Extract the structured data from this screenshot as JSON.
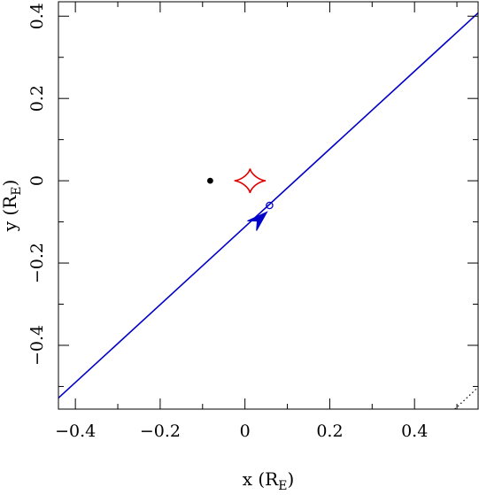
{
  "chart_data": {
    "type": "scatter",
    "title": "",
    "xlabel": "x (R",
    "xlabel_sub": "E",
    "xlabel_close": ")",
    "ylabel": "y (R",
    "ylabel_sub": "E",
    "ylabel_close": ")",
    "xlim": [
      -0.44,
      0.55
    ],
    "ylim": [
      -0.555,
      0.435
    ],
    "x_ticks": [
      {
        "value": -0.4,
        "label": "−0.4"
      },
      {
        "value": -0.2,
        "label": "−0.2"
      },
      {
        "value": 0,
        "label": "0"
      },
      {
        "value": 0.2,
        "label": "0.2"
      },
      {
        "value": 0.4,
        "label": "0.4"
      }
    ],
    "y_ticks": [
      {
        "value": 0.4,
        "label": "0.4"
      },
      {
        "value": 0.2,
        "label": "0.2"
      },
      {
        "value": 0,
        "label": "0"
      },
      {
        "value": -0.2,
        "label": "−0.2"
      },
      {
        "value": -0.4,
        "label": "−0.4"
      }
    ],
    "minor_step": 0.1,
    "source_trajectory": {
      "color": "#0000c8",
      "points": [
        [
          -0.44,
          -0.528
        ],
        [
          0.55,
          0.408
        ]
      ],
      "arrow_tip": [
        0.052,
        -0.076
      ],
      "arrow_direction": [
        1,
        0.945
      ],
      "marker": [
        0.058,
        -0.06
      ]
    },
    "lens_point": {
      "x": -0.082,
      "y": 0.0,
      "color": "#000000"
    },
    "caustic": {
      "center": [
        0.012,
        0.0
      ],
      "half_width": 0.037,
      "half_height": 0.03,
      "color": "#e00000"
    },
    "critical_curve_segment": {
      "points": [
        [
          0.495,
          -0.555
        ],
        [
          0.55,
          -0.502
        ]
      ],
      "style": "dotted",
      "color": "#000000"
    }
  }
}
